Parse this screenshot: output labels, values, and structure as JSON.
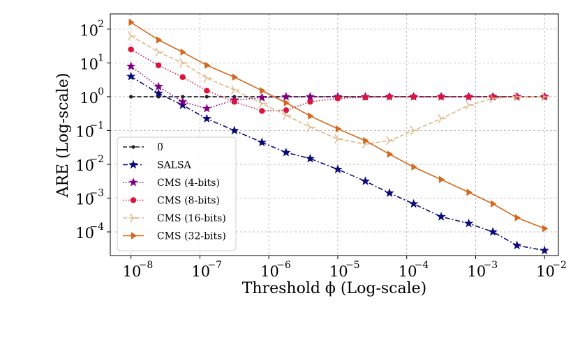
{
  "chart_data": {
    "type": "line",
    "title": "",
    "xlabel": "Threshold ϕ (Log-scale)",
    "ylabel": "ARE (Log-scale)",
    "x_scale": "log",
    "y_scale": "log",
    "xlim_log10": [
      -8.3,
      -1.8
    ],
    "ylim_log10": [
      -4.7,
      2.45
    ],
    "grid": true,
    "legend_position": "lower-left",
    "x_ticks": [
      {
        "base": "10",
        "exp": "−8",
        "log10": -8
      },
      {
        "base": "10",
        "exp": "−7",
        "log10": -7
      },
      {
        "base": "10",
        "exp": "−6",
        "log10": -6
      },
      {
        "base": "10",
        "exp": "−5",
        "log10": -5
      },
      {
        "base": "10",
        "exp": "−4",
        "log10": -4
      },
      {
        "base": "10",
        "exp": "−3",
        "log10": -3
      },
      {
        "base": "10",
        "exp": "−2",
        "log10": -2
      }
    ],
    "y_ticks": [
      {
        "base": "10",
        "exp": "2",
        "log10": 2
      },
      {
        "base": "10",
        "exp": "1",
        "log10": 1
      },
      {
        "base": "10",
        "exp": "0",
        "log10": 0
      },
      {
        "base": "10",
        "exp": "−1",
        "log10": -1
      },
      {
        "base": "10",
        "exp": "−2",
        "log10": -2
      },
      {
        "base": "10",
        "exp": "−3",
        "log10": -3
      },
      {
        "base": "10",
        "exp": "−4",
        "log10": -4
      }
    ],
    "x_log10": [
      -8.0,
      -7.6,
      -7.25,
      -6.9,
      -6.5,
      -6.1,
      -5.75,
      -5.4,
      -5.0,
      -4.6,
      -4.25,
      -3.9,
      -3.5,
      -3.1,
      -2.75,
      -2.4,
      -2.0
    ],
    "series": [
      {
        "name": "0̅",
        "color": "#222222",
        "line_style": "dashed",
        "marker": "dot",
        "y_log10": [
          0,
          0,
          0,
          0,
          0,
          0,
          0,
          0,
          0,
          0,
          0,
          0,
          0,
          0,
          0,
          0,
          0
        ]
      },
      {
        "name": "SALSA",
        "color": "#0a0a78",
        "line_style": "dashdot",
        "marker": "star",
        "y_log10": [
          0.6,
          0.1,
          -0.25,
          -0.65,
          -1.0,
          -1.35,
          -1.65,
          -1.83,
          -2.15,
          -2.5,
          -2.85,
          -3.17,
          -3.55,
          -3.75,
          -4.0,
          -4.4,
          -4.55
        ]
      },
      {
        "name": "CMS (4-bits)",
        "color": "#800080",
        "line_style": "dotted",
        "marker": "star",
        "y_log10": [
          0.9,
          0.3,
          -0.15,
          -0.35,
          -0.1,
          -0.03,
          0,
          0,
          0,
          0,
          0,
          0,
          0,
          0,
          0,
          0,
          0
        ]
      },
      {
        "name": "CMS (8-bits)",
        "color": "#dc143c",
        "line_style": "dotted",
        "marker": "circle",
        "y_log10": [
          1.4,
          0.93,
          0.58,
          0.18,
          -0.15,
          -0.42,
          -0.4,
          -0.15,
          -0.05,
          -0.02,
          0,
          0,
          0,
          0,
          0,
          0,
          0
        ]
      },
      {
        "name": "CMS (16-bits)",
        "color": "#deb887",
        "line_style": "dashed",
        "marker": "tri",
        "y_log10": [
          1.8,
          1.32,
          1.0,
          0.55,
          0.2,
          -0.2,
          -0.55,
          -0.9,
          -1.25,
          -1.4,
          -1.3,
          -1.0,
          -0.65,
          -0.25,
          -0.05,
          0,
          0
        ]
      },
      {
        "name": "CMS (32-bits)",
        "color": "#d2691e",
        "line_style": "solid",
        "marker": "triangle-right",
        "y_log10": [
          2.2,
          1.68,
          1.32,
          0.93,
          0.58,
          0.18,
          -0.18,
          -0.57,
          -0.95,
          -1.3,
          -1.7,
          -2.08,
          -2.45,
          -2.83,
          -3.17,
          -3.58,
          -3.9
        ]
      }
    ]
  }
}
